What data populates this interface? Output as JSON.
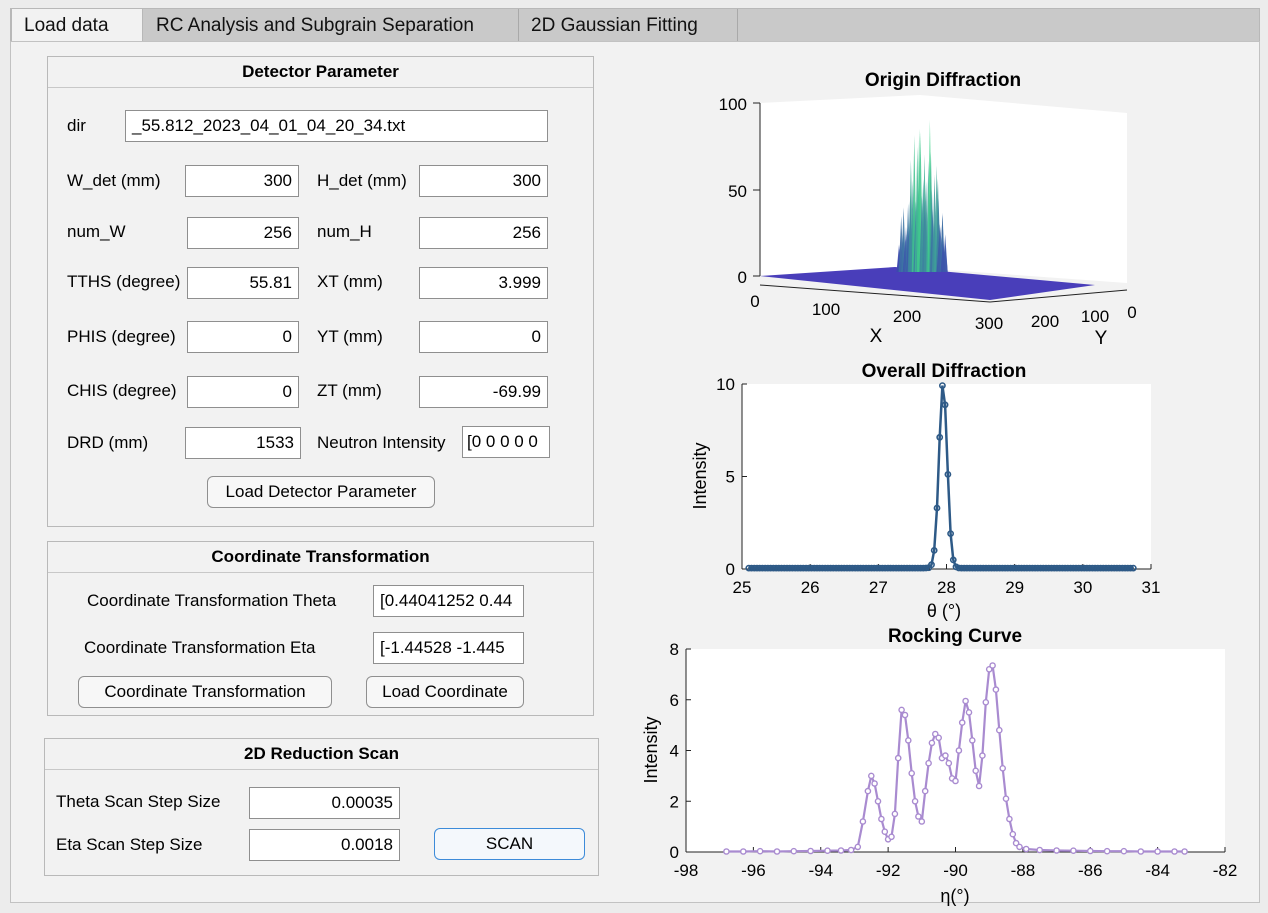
{
  "tabs": [
    "Load data",
    "RC Analysis and Subgrain Separation",
    "2D Gaussian Fitting"
  ],
  "detector": {
    "title": "Detector Parameter",
    "dir_label": "dir",
    "dir_value": "_55.812_2023_04_01_04_20_34.txt",
    "w_det_label": "W_det (mm)",
    "w_det": "300",
    "h_det_label": "H_det (mm)",
    "h_det": "300",
    "num_w_label": "num_W",
    "num_w": "256",
    "num_h_label": "num_H",
    "num_h": "256",
    "tths_label": "TTHS (degree)",
    "tths": "55.81",
    "xt_label": "XT (mm)",
    "xt": "3.999",
    "phis_label": "PHIS (degree)",
    "phis": "0",
    "yt_label": "YT (mm)",
    "yt": "0",
    "chis_label": "CHIS (degree)",
    "chis": "0",
    "zt_label": "ZT (mm)",
    "zt": "-69.99",
    "drd_label": "DRD (mm)",
    "drd": "1533",
    "intensity_label": "Neutron Intensity",
    "intensity": "[0 0 0 0 0",
    "load_button": "Load Detector Parameter"
  },
  "coord": {
    "title": "Coordinate Transformation",
    "theta_label": "Coordinate Transformation Theta",
    "theta_value": "[0.44041252 0.44",
    "eta_label": "Coordinate Transformation Eta",
    "eta_value": "[-1.44528 -1.445",
    "transform_button": "Coordinate Transformation",
    "load_button": "Load Coordinate"
  },
  "scan": {
    "title": "2D Reduction Scan",
    "theta_label": "Theta Scan Step Size",
    "theta_value": "0.00035",
    "eta_label": "Eta Scan Step Size",
    "eta_value": "0.0018",
    "scan_button": "SCAN"
  },
  "colors": {
    "overall": "#2e5a87",
    "rocking": "#a98bd0",
    "surface_low": "#3b2fb5",
    "surface_high": "#3fd48a"
  },
  "chart_data": [
    {
      "type": "surface",
      "title": "Origin Diffraction",
      "xlabel": "X",
      "ylabel": "Y",
      "x_ticks": [
        "0",
        "100",
        "200",
        "300"
      ],
      "y_ticks": [
        "300",
        "200",
        "100",
        "0"
      ],
      "z_ticks": [
        "0",
        "50",
        "100"
      ],
      "zlim": [
        0,
        100
      ],
      "peak_height": 88
    },
    {
      "type": "line",
      "title": "Overall Diffraction",
      "xlabel": "θ  (°)",
      "ylabel": "Intensity",
      "xlim": [
        25,
        31
      ],
      "ylim": [
        0,
        10
      ],
      "x_ticks": [
        "25",
        "26",
        "27",
        "28",
        "29",
        "30",
        "31"
      ],
      "y_ticks": [
        "0",
        "5",
        "10"
      ],
      "peak": {
        "center": 27.95,
        "height": 10,
        "sigma": 0.06,
        "baseline": 0.05
      },
      "x_range": [
        25.1,
        30.75
      ]
    },
    {
      "type": "line",
      "title": "Rocking Curve",
      "xlabel": "η(°)",
      "ylabel": "Intensity",
      "xlim": [
        -98,
        -82
      ],
      "ylim": [
        0,
        8
      ],
      "x_ticks": [
        "-98",
        "-96",
        "-94",
        "-92",
        "-90",
        "-88",
        "-86",
        "-84",
        "-82"
      ],
      "y_ticks": [
        "0",
        "2",
        "4",
        "6",
        "8"
      ],
      "points": [
        [
          -96.8,
          0.02
        ],
        [
          -96.3,
          0.02
        ],
        [
          -95.8,
          0.03
        ],
        [
          -95.3,
          0.02
        ],
        [
          -94.8,
          0.03
        ],
        [
          -94.3,
          0.04
        ],
        [
          -93.8,
          0.05
        ],
        [
          -93.4,
          0.06
        ],
        [
          -93.1,
          0.08
        ],
        [
          -92.9,
          0.2
        ],
        [
          -92.75,
          1.2
        ],
        [
          -92.6,
          2.4
        ],
        [
          -92.5,
          3.0
        ],
        [
          -92.4,
          2.7
        ],
        [
          -92.3,
          2.0
        ],
        [
          -92.2,
          1.3
        ],
        [
          -92.1,
          0.8
        ],
        [
          -92.0,
          0.5
        ],
        [
          -91.9,
          0.6
        ],
        [
          -91.8,
          1.5
        ],
        [
          -91.7,
          3.7
        ],
        [
          -91.6,
          5.6
        ],
        [
          -91.5,
          5.4
        ],
        [
          -91.4,
          4.4
        ],
        [
          -91.3,
          3.1
        ],
        [
          -91.2,
          2.0
        ],
        [
          -91.1,
          1.4
        ],
        [
          -91.0,
          1.2
        ],
        [
          -90.9,
          2.4
        ],
        [
          -90.8,
          3.5
        ],
        [
          -90.7,
          4.3
        ],
        [
          -90.6,
          4.65
        ],
        [
          -90.5,
          4.5
        ],
        [
          -90.4,
          3.7
        ],
        [
          -90.3,
          3.8
        ],
        [
          -90.2,
          3.5
        ],
        [
          -90.1,
          2.9
        ],
        [
          -90.0,
          2.8
        ],
        [
          -89.9,
          4.0
        ],
        [
          -89.8,
          5.1
        ],
        [
          -89.7,
          5.95
        ],
        [
          -89.6,
          5.5
        ],
        [
          -89.5,
          4.4
        ],
        [
          -89.4,
          3.2
        ],
        [
          -89.3,
          2.6
        ],
        [
          -89.2,
          3.8
        ],
        [
          -89.1,
          5.9
        ],
        [
          -89.0,
          7.2
        ],
        [
          -88.9,
          7.35
        ],
        [
          -88.8,
          6.4
        ],
        [
          -88.7,
          4.8
        ],
        [
          -88.6,
          3.3
        ],
        [
          -88.5,
          2.1
        ],
        [
          -88.4,
          1.3
        ],
        [
          -88.3,
          0.7
        ],
        [
          -88.2,
          0.35
        ],
        [
          -88.1,
          0.2
        ],
        [
          -87.9,
          0.12
        ],
        [
          -87.5,
          0.08
        ],
        [
          -87.0,
          0.06
        ],
        [
          -86.5,
          0.05
        ],
        [
          -86.0,
          0.04
        ],
        [
          -85.5,
          0.03
        ],
        [
          -85.0,
          0.03
        ],
        [
          -84.5,
          0.02
        ],
        [
          -84.0,
          0.02
        ],
        [
          -83.5,
          0.02
        ],
        [
          -83.2,
          0.02
        ]
      ]
    }
  ]
}
